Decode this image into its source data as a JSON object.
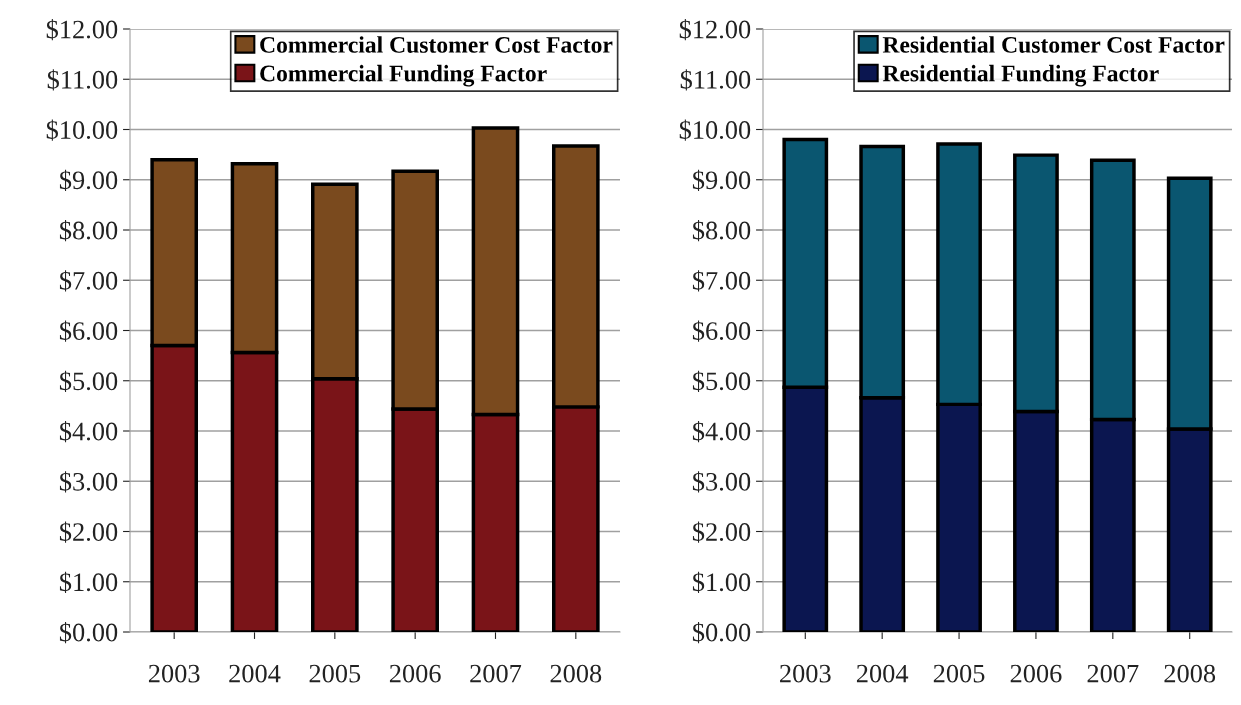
{
  "chart_data": [
    {
      "type": "bar",
      "stacked": true,
      "categories": [
        "2003",
        "2004",
        "2005",
        "2006",
        "2007",
        "2008"
      ],
      "series": [
        {
          "name": "Commercial Funding Factor",
          "color": "#7a1418",
          "values": [
            5.7,
            5.56,
            5.04,
            4.44,
            4.33,
            4.48
          ]
        },
        {
          "name": "Commercial Customer Cost Factor",
          "color": "#7a4a1e",
          "values": [
            3.7,
            3.76,
            3.87,
            4.73,
            5.7,
            5.19
          ]
        }
      ],
      "ylim": [
        0,
        12
      ],
      "yticks": [
        {
          "value": 0,
          "label": "$0.00"
        },
        {
          "value": 1,
          "label": "$1.00"
        },
        {
          "value": 2,
          "label": "$2.00"
        },
        {
          "value": 3,
          "label": "$3.00"
        },
        {
          "value": 4,
          "label": "$4.00"
        },
        {
          "value": 5,
          "label": "$5.00"
        },
        {
          "value": 6,
          "label": "$6.00"
        },
        {
          "value": 7,
          "label": "$7.00"
        },
        {
          "value": 8,
          "label": "$8.00"
        },
        {
          "value": 9,
          "label": "$9.00"
        },
        {
          "value": 10,
          "label": "$10.00"
        },
        {
          "value": 11,
          "label": "$11.00"
        },
        {
          "value": 12,
          "label": "$12.00"
        }
      ],
      "grid": "y",
      "legend": "top right"
    },
    {
      "type": "bar",
      "stacked": true,
      "categories": [
        "2003",
        "2004",
        "2005",
        "2006",
        "2007",
        "2008"
      ],
      "series": [
        {
          "name": "Residential Funding Factor",
          "color": "#0b1650",
          "values": [
            4.87,
            4.66,
            4.53,
            4.39,
            4.23,
            4.04
          ]
        },
        {
          "name": "Residential Customer Cost Factor",
          "color": "#0a5670",
          "values": [
            4.93,
            5.0,
            5.18,
            5.1,
            5.16,
            4.99
          ]
        }
      ],
      "ylim": [
        0,
        12
      ],
      "yticks": [
        {
          "value": 0,
          "label": "$0.00"
        },
        {
          "value": 1,
          "label": "$1.00"
        },
        {
          "value": 2,
          "label": "$2.00"
        },
        {
          "value": 3,
          "label": "$3.00"
        },
        {
          "value": 4,
          "label": "$4.00"
        },
        {
          "value": 5,
          "label": "$5.00"
        },
        {
          "value": 6,
          "label": "$6.00"
        },
        {
          "value": 7,
          "label": "$7.00"
        },
        {
          "value": 8,
          "label": "$8.00"
        },
        {
          "value": 9,
          "label": "$9.00"
        },
        {
          "value": 10,
          "label": "$10.00"
        },
        {
          "value": 11,
          "label": "$11.00"
        },
        {
          "value": 12,
          "label": "$12.00"
        }
      ],
      "grid": "y",
      "legend": "top right"
    }
  ]
}
